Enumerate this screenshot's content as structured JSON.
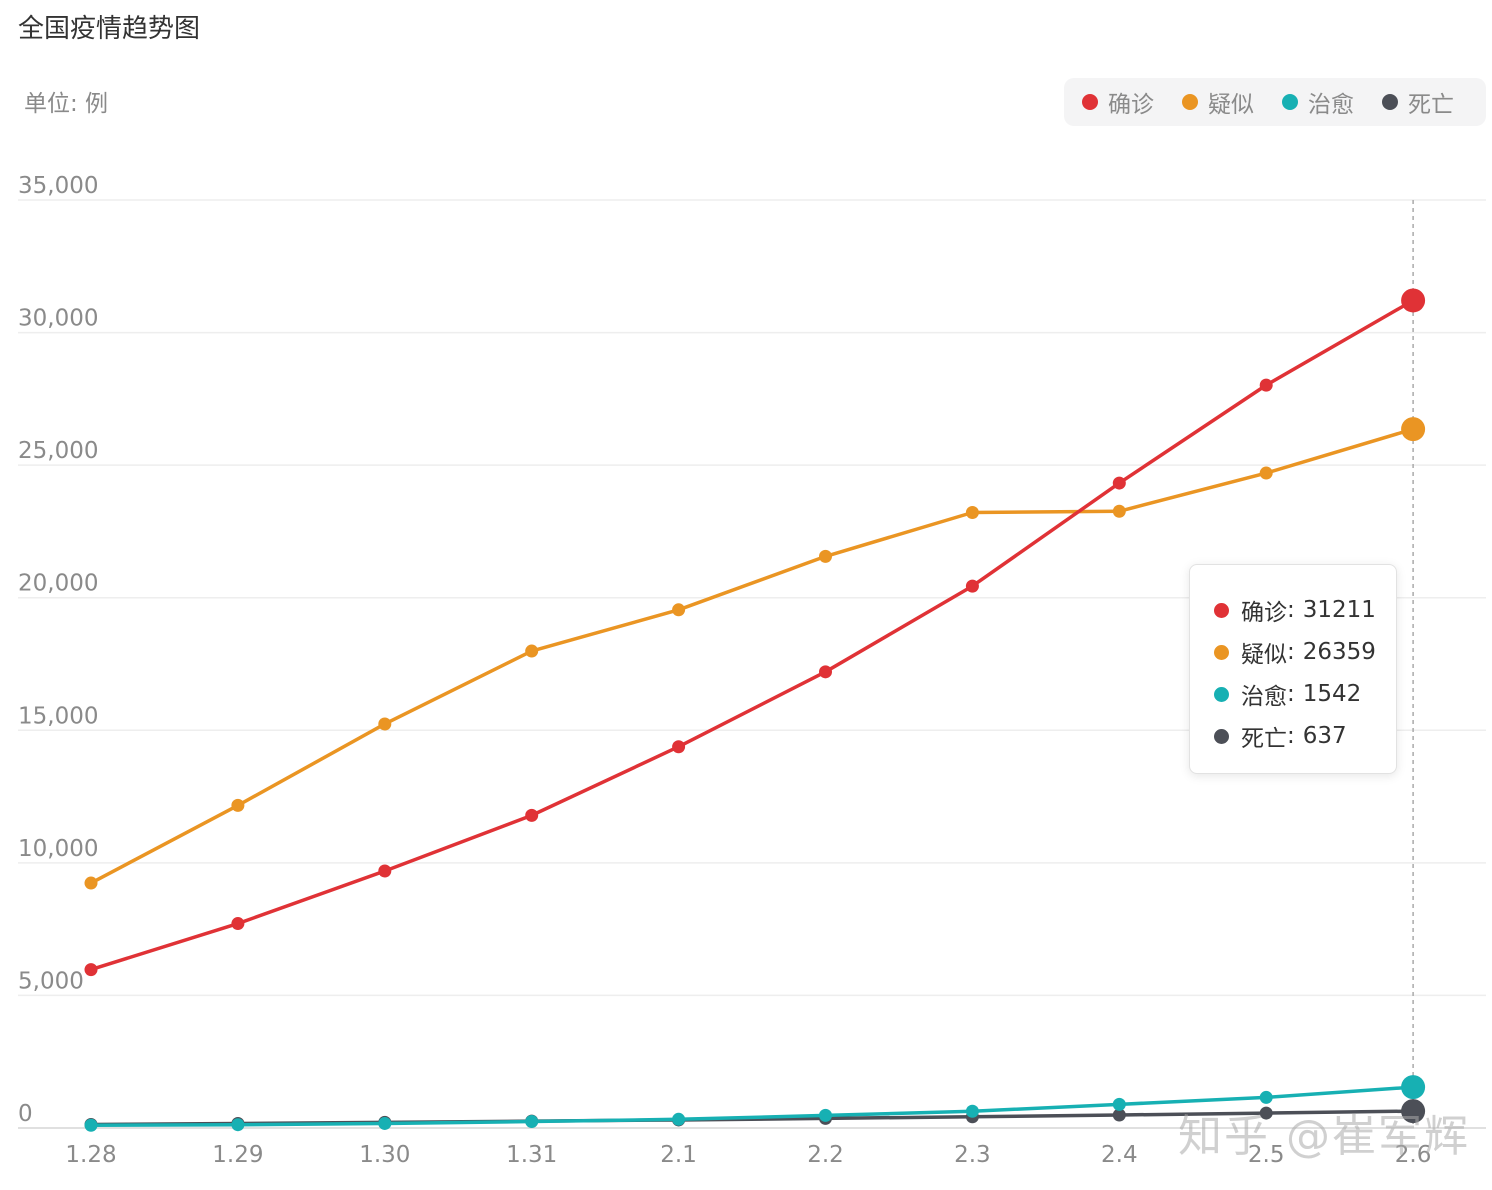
{
  "header": {
    "title": "全国疫情趋势图",
    "unit": "单位: 例"
  },
  "legend": [
    {
      "label": "确诊",
      "color": "#e03236"
    },
    {
      "label": "疑似",
      "color": "#ea9523"
    },
    {
      "label": "治愈",
      "color": "#17b0b3"
    },
    {
      "label": "死亡",
      "color": "#4c4f57"
    }
  ],
  "tooltip": {
    "rows": [
      {
        "label": "确诊",
        "value": "31211",
        "color": "#e03236"
      },
      {
        "label": "疑似",
        "value": "26359",
        "color": "#ea9523"
      },
      {
        "label": "治愈",
        "value": "1542",
        "color": "#17b0b3"
      },
      {
        "label": "死亡",
        "value": "637",
        "color": "#4c4f57"
      }
    ]
  },
  "watermark": "知乎 @崔军辉",
  "chart_data": {
    "type": "line",
    "title": "全国疫情趋势图",
    "categories": [
      "1.28",
      "1.29",
      "1.30",
      "1.31",
      "2.1",
      "2.2",
      "2.3",
      "2.4",
      "2.5",
      "2.6"
    ],
    "series": [
      {
        "name": "确诊",
        "color": "#e03236",
        "values": [
          5974,
          7711,
          9692,
          11791,
          14380,
          17205,
          20438,
          24324,
          28018,
          31211
        ]
      },
      {
        "name": "疑似",
        "color": "#ea9523",
        "values": [
          9239,
          12167,
          15238,
          17988,
          19544,
          21558,
          23214,
          23260,
          24702,
          26359
        ]
      },
      {
        "name": "治愈",
        "color": "#17b0b3",
        "values": [
          103,
          124,
          171,
          243,
          328,
          475,
          632,
          892,
          1153,
          1542
        ]
      },
      {
        "name": "死亡",
        "color": "#4c4f57",
        "values": [
          132,
          170,
          213,
          259,
          304,
          361,
          425,
          490,
          563,
          637
        ]
      }
    ],
    "yticks": [
      "0",
      "5,000",
      "10,000",
      "15,000",
      "20,000",
      "25,000",
      "30,000",
      "35,000"
    ],
    "ylim": [
      0,
      35000
    ],
    "grid": true,
    "legend_position": "top-right",
    "highlight_category": "2.6"
  }
}
